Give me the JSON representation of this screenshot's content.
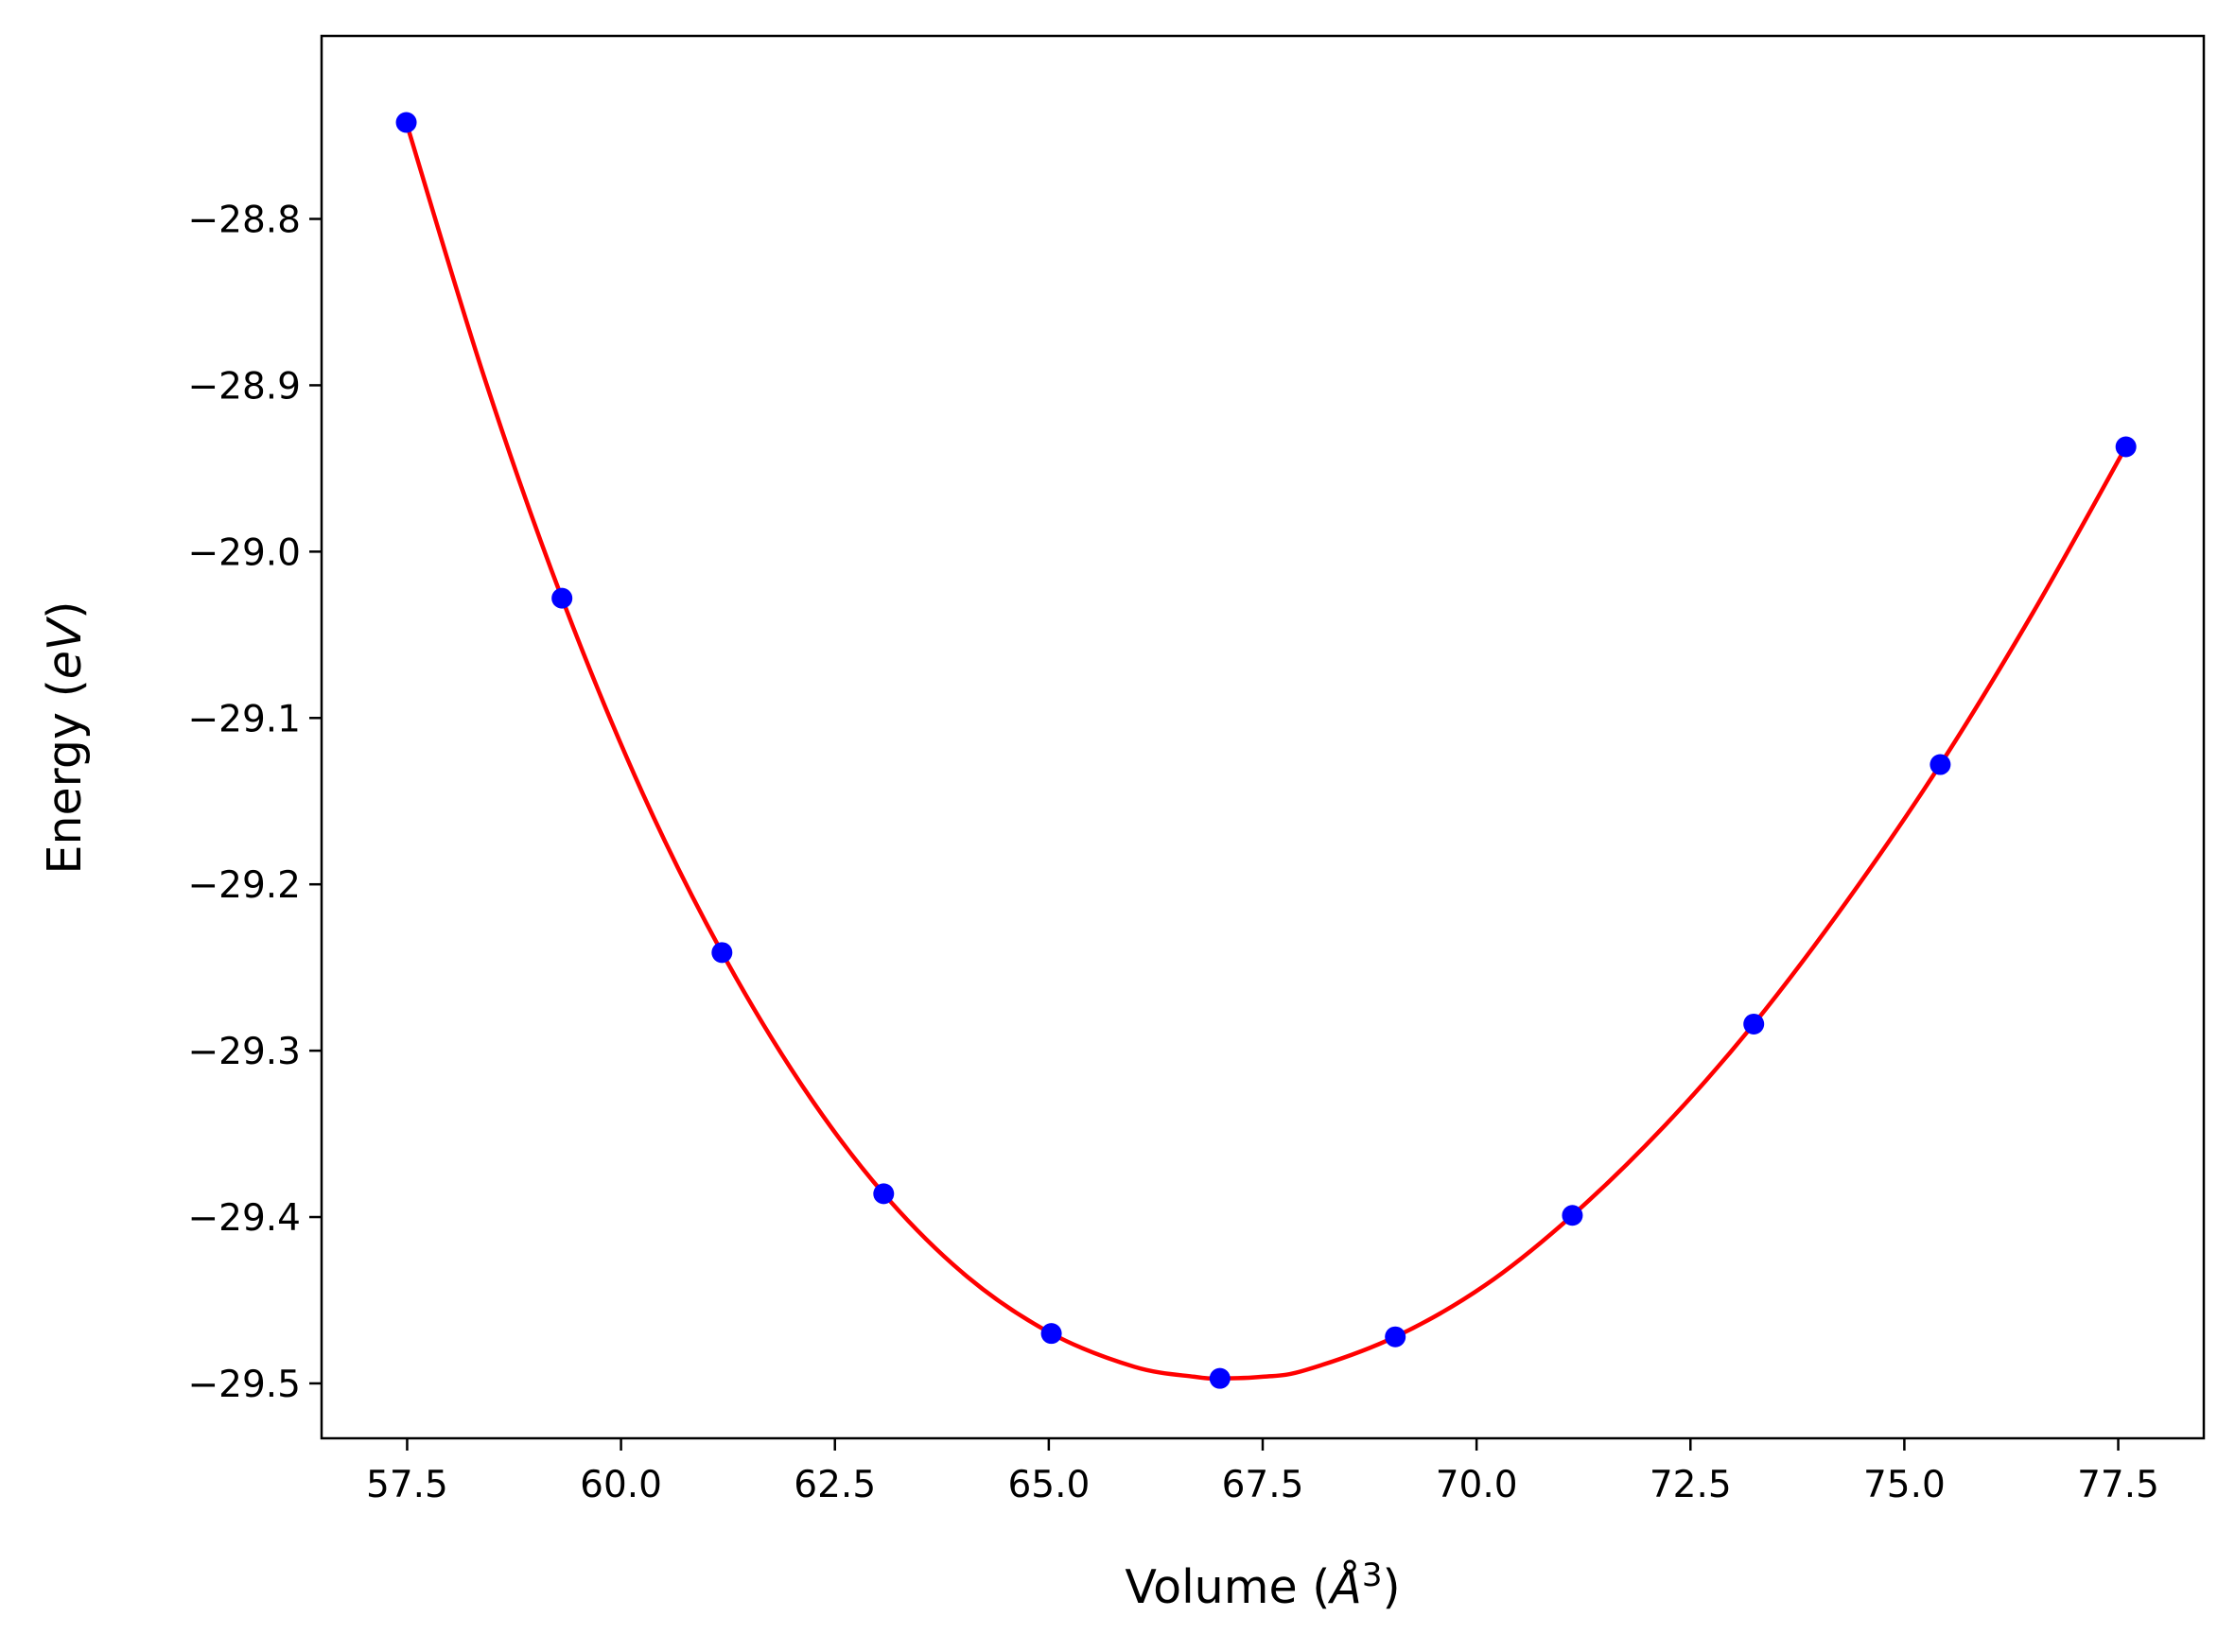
{
  "chart_data": {
    "type": "line",
    "xlabel_parts": [
      "Volume (",
      "Å",
      "3",
      ")"
    ],
    "ylabel_parts": [
      "Energy (",
      "eV",
      ")"
    ],
    "xlim": [
      56.5,
      78.5
    ],
    "ylim": [
      -29.533,
      -28.69
    ],
    "grid": false,
    "x_ticks": [
      57.5,
      60.0,
      62.5,
      65.0,
      67.5,
      70.0,
      72.5,
      75.0,
      77.5
    ],
    "x_tick_labels": [
      "57.5",
      "60.0",
      "62.5",
      "65.0",
      "67.5",
      "70.0",
      "72.5",
      "75.0",
      "77.5"
    ],
    "y_ticks": [
      -28.8,
      -28.9,
      -29.0,
      -29.1,
      -29.2,
      -29.3,
      -29.4,
      -29.5
    ],
    "y_tick_labels": [
      "−28.8",
      "−28.9",
      "−29.0",
      "−29.1",
      "−29.2",
      "−29.3",
      "−29.4",
      "−29.5"
    ],
    "series": [
      {
        "kind": "markers",
        "color": "#0000ff",
        "x": [
          57.49,
          59.31,
          61.18,
          63.07,
          65.03,
          67.0,
          69.05,
          71.12,
          73.24,
          75.42,
          77.59
        ],
        "y": [
          -28.742,
          -29.028,
          -29.241,
          -29.386,
          -29.47,
          -29.497,
          -29.472,
          -29.399,
          -29.284,
          -29.128,
          -28.937
        ]
      },
      {
        "kind": "fit-curve",
        "color": "#ff0000",
        "x": [
          57.49,
          58.4,
          59.31,
          60.25,
          61.18,
          62.13,
          63.07,
          64.05,
          65.03,
          66.0,
          66.7,
          67.0,
          67.5,
          68.0,
          69.05,
          70.1,
          71.12,
          72.2,
          73.24,
          74.33,
          75.42,
          76.5,
          77.59
        ],
        "y": [
          -28.742,
          -28.895,
          -29.028,
          -29.145,
          -29.241,
          -29.322,
          -29.386,
          -29.436,
          -29.47,
          -29.49,
          -29.496,
          -29.497,
          -29.496,
          -29.492,
          -29.472,
          -29.441,
          -29.399,
          -29.345,
          -29.284,
          -29.21,
          -29.128,
          -29.037,
          -28.937
        ]
      }
    ]
  }
}
